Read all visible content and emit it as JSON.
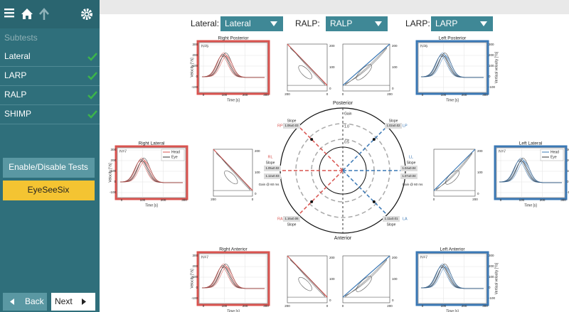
{
  "sidebar": {
    "subtests_label": "Subtests",
    "items": [
      "Lateral",
      "LARP",
      "RALP",
      "SHIMP"
    ],
    "enable_button": "Enable/Disable Tests",
    "eyeseesix_button": "EyeSeeSix",
    "back_button": "Back",
    "next_button": "Next"
  },
  "selectors": [
    {
      "label": "Lateral:",
      "value": "Lateral"
    },
    {
      "label": "RALP:",
      "value": "RALP"
    },
    {
      "label": "LARP:",
      "value": "LARP"
    }
  ],
  "impulse_axes": {
    "yticks": [
      "300",
      "200",
      "100",
      "0",
      "-100"
    ],
    "xticks": [
      "0",
      "100",
      "200",
      "300"
    ],
    "xlabel": "Time [s]",
    "ylabel": "Velocity [°/s]",
    "ylabel_right": "Vertical velocity [°/s]"
  },
  "legend": {
    "head": "Head",
    "eye": "Eye"
  },
  "regression_axes": {
    "ticks": [
      "200",
      "100",
      "0"
    ]
  },
  "panels": [
    {
      "title": "Right Posterior",
      "n": "N=5"
    },
    {
      "title": "Left Posterior",
      "n": "N=6"
    },
    {
      "title": "Right Lateral",
      "n": "N=7"
    },
    {
      "title": "Left Lateral",
      "n": "N=7"
    },
    {
      "title": "Right Anterior",
      "n": "N=7"
    },
    {
      "title": "Left Anterior",
      "n": "N=7"
    }
  ],
  "polar": {
    "posterior": "Posterior",
    "anterior": "Anterior",
    "gain_label": "Gain",
    "rings": [
      "1.0",
      "0.5"
    ],
    "slope_label": "Slope",
    "gain_at": "Gain @ 60 ms",
    "canals": [
      {
        "name": "RP",
        "slope": "1.06±0.03"
      },
      {
        "name": "LP",
        "slope": "1.02±0.02"
      },
      {
        "name": "RL",
        "slope": "1.05±0.02",
        "gain": "1.12±0.03"
      },
      {
        "name": "LL",
        "slope": "1.04±0.04",
        "gain": "1.07±0.04"
      },
      {
        "name": "RA",
        "slope": "1.16±0.06"
      },
      {
        "name": "LA",
        "slope": "1.11±0.01"
      }
    ]
  }
}
